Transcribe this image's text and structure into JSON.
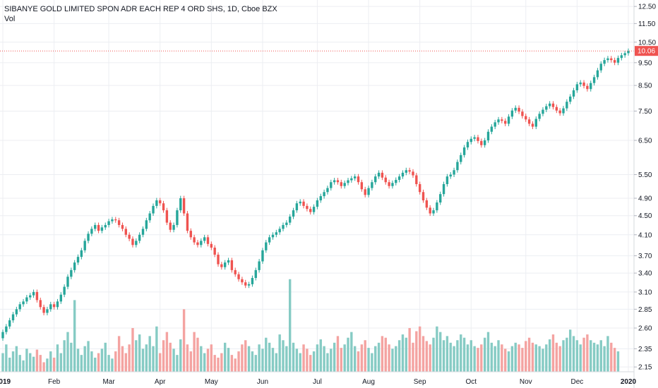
{
  "chart_data": {
    "type": "candlestick",
    "title": "SIBANYE GOLD LIMITED SPON ADR EACH REP 4 ORD SHS, 1D, Cboe BZX",
    "volume_label": "Vol",
    "scale": "log",
    "ylim": [
      2.1,
      12.9
    ],
    "y_ticks": [
      "12.50",
      "11.50",
      "10.50",
      "9.50",
      "8.50",
      "7.50",
      "6.50",
      "5.50",
      "4.90",
      "4.50",
      "4.10",
      "3.70",
      "3.40",
      "3.10",
      "2.85",
      "2.60",
      "2.35",
      "2.15"
    ],
    "x_ticks": [
      "2019",
      "Feb",
      "Mar",
      "Apr",
      "May",
      "Jun",
      "Jul",
      "Aug",
      "Sep",
      "Oct",
      "Nov",
      "Dec",
      "2020"
    ],
    "last_price": "10.06",
    "colors": {
      "up": "#26a69a",
      "down": "#ef5350",
      "vol_up": "#86cbc4",
      "vol_down": "#f4a3a1",
      "grid": "#eceef2",
      "axis_text": "#131722",
      "price_line": "#ef5350"
    },
    "close_series": [
      2.55,
      2.62,
      2.7,
      2.78,
      2.85,
      2.92,
      2.96,
      3.02,
      3.05,
      3.1,
      2.98,
      2.88,
      2.8,
      2.85,
      2.92,
      2.88,
      2.96,
      3.06,
      3.18,
      3.34,
      3.45,
      3.58,
      3.68,
      3.8,
      3.98,
      4.12,
      4.22,
      4.3,
      4.18,
      4.25,
      4.3,
      4.38,
      4.42,
      4.4,
      4.3,
      4.22,
      4.1,
      4.02,
      3.9,
      3.98,
      4.1,
      4.22,
      4.4,
      4.55,
      4.72,
      4.85,
      4.78,
      4.62,
      4.35,
      4.2,
      4.3,
      4.62,
      4.9,
      4.55,
      4.18,
      4.05,
      3.95,
      3.9,
      3.98,
      4.05,
      3.92,
      3.85,
      3.72,
      3.55,
      3.5,
      3.58,
      3.62,
      3.45,
      3.38,
      3.3,
      3.25,
      3.2,
      3.22,
      3.32,
      3.45,
      3.6,
      3.8,
      3.95,
      4.05,
      4.1,
      4.15,
      4.22,
      4.3,
      4.35,
      4.48,
      4.62,
      4.78,
      4.82,
      4.72,
      4.65,
      4.58,
      4.7,
      4.85,
      4.95,
      5.05,
      5.15,
      5.3,
      5.35,
      5.3,
      5.2,
      5.28,
      5.35,
      5.4,
      5.45,
      5.3,
      5.12,
      4.98,
      5.15,
      5.3,
      5.45,
      5.55,
      5.42,
      5.3,
      5.2,
      5.28,
      5.36,
      5.45,
      5.55,
      5.62,
      5.58,
      5.48,
      5.25,
      5.05,
      4.85,
      4.68,
      4.55,
      4.62,
      4.8,
      5.0,
      5.25,
      5.45,
      5.5,
      5.62,
      5.85,
      6.05,
      6.28,
      6.45,
      6.55,
      6.6,
      6.48,
      6.35,
      6.5,
      6.78,
      6.95,
      7.1,
      7.2,
      7.15,
      7.05,
      7.3,
      7.52,
      7.62,
      7.48,
      7.32,
      7.2,
      7.05,
      6.95,
      7.22,
      7.4,
      7.55,
      7.68,
      7.78,
      7.65,
      7.52,
      7.42,
      7.6,
      7.85,
      8.05,
      8.3,
      8.55,
      8.62,
      8.48,
      8.35,
      8.6,
      8.85,
      9.15,
      9.45,
      9.62,
      9.7,
      9.62,
      9.5,
      9.72,
      9.85,
      9.95,
      10.06
    ],
    "volume_series": [
      2.3,
      2.4,
      2.25,
      2.32,
      2.38,
      2.28,
      2.22,
      2.35,
      2.3,
      2.26,
      2.34,
      2.28,
      2.2,
      2.24,
      2.32,
      2.25,
      2.4,
      2.3,
      2.45,
      2.55,
      2.42,
      2.98,
      2.35,
      2.28,
      2.38,
      2.44,
      2.32,
      2.25,
      2.3,
      2.35,
      2.42,
      2.28,
      2.24,
      2.32,
      2.5,
      2.38,
      2.3,
      2.4,
      2.6,
      2.45,
      2.52,
      2.35,
      2.4,
      2.5,
      2.38,
      2.62,
      2.3,
      2.45,
      2.55,
      2.42,
      2.35,
      2.28,
      2.46,
      2.85,
      2.4,
      2.32,
      2.55,
      2.48,
      2.38,
      2.3,
      2.35,
      2.4,
      2.28,
      2.25,
      2.3,
      2.42,
      2.36,
      2.28,
      2.24,
      2.32,
      2.4,
      2.45,
      2.38,
      2.32,
      2.28,
      2.4,
      2.35,
      2.48,
      2.42,
      2.36,
      2.3,
      2.52,
      2.45,
      2.38,
      3.3,
      2.42,
      2.35,
      2.3,
      2.4,
      2.35,
      2.28,
      2.32,
      2.4,
      2.46,
      2.38,
      2.3,
      2.35,
      2.42,
      2.5,
      2.36,
      2.4,
      2.48,
      2.55,
      2.38,
      2.32,
      2.4,
      2.45,
      2.36,
      2.3,
      2.38,
      2.42,
      2.5,
      2.48,
      2.4,
      2.35,
      2.38,
      2.45,
      2.52,
      2.48,
      2.6,
      2.42,
      2.56,
      2.62,
      2.5,
      2.44,
      2.4,
      2.48,
      2.62,
      2.55,
      2.45,
      2.5,
      2.42,
      2.38,
      2.45,
      2.52,
      2.48,
      2.4,
      2.45,
      2.38,
      2.36,
      2.4,
      2.48,
      2.55,
      2.42,
      2.38,
      2.45,
      2.4,
      2.35,
      2.32,
      2.38,
      2.42,
      2.4,
      2.36,
      2.44,
      2.48,
      2.42,
      2.4,
      2.38,
      2.35,
      2.4,
      2.46,
      2.52,
      2.42,
      2.38,
      2.45,
      2.48,
      2.58,
      2.5,
      2.45,
      2.4,
      2.48,
      2.52,
      2.45,
      2.42,
      2.4,
      2.45,
      2.38,
      2.5,
      2.42,
      2.36,
      2.32
    ]
  }
}
